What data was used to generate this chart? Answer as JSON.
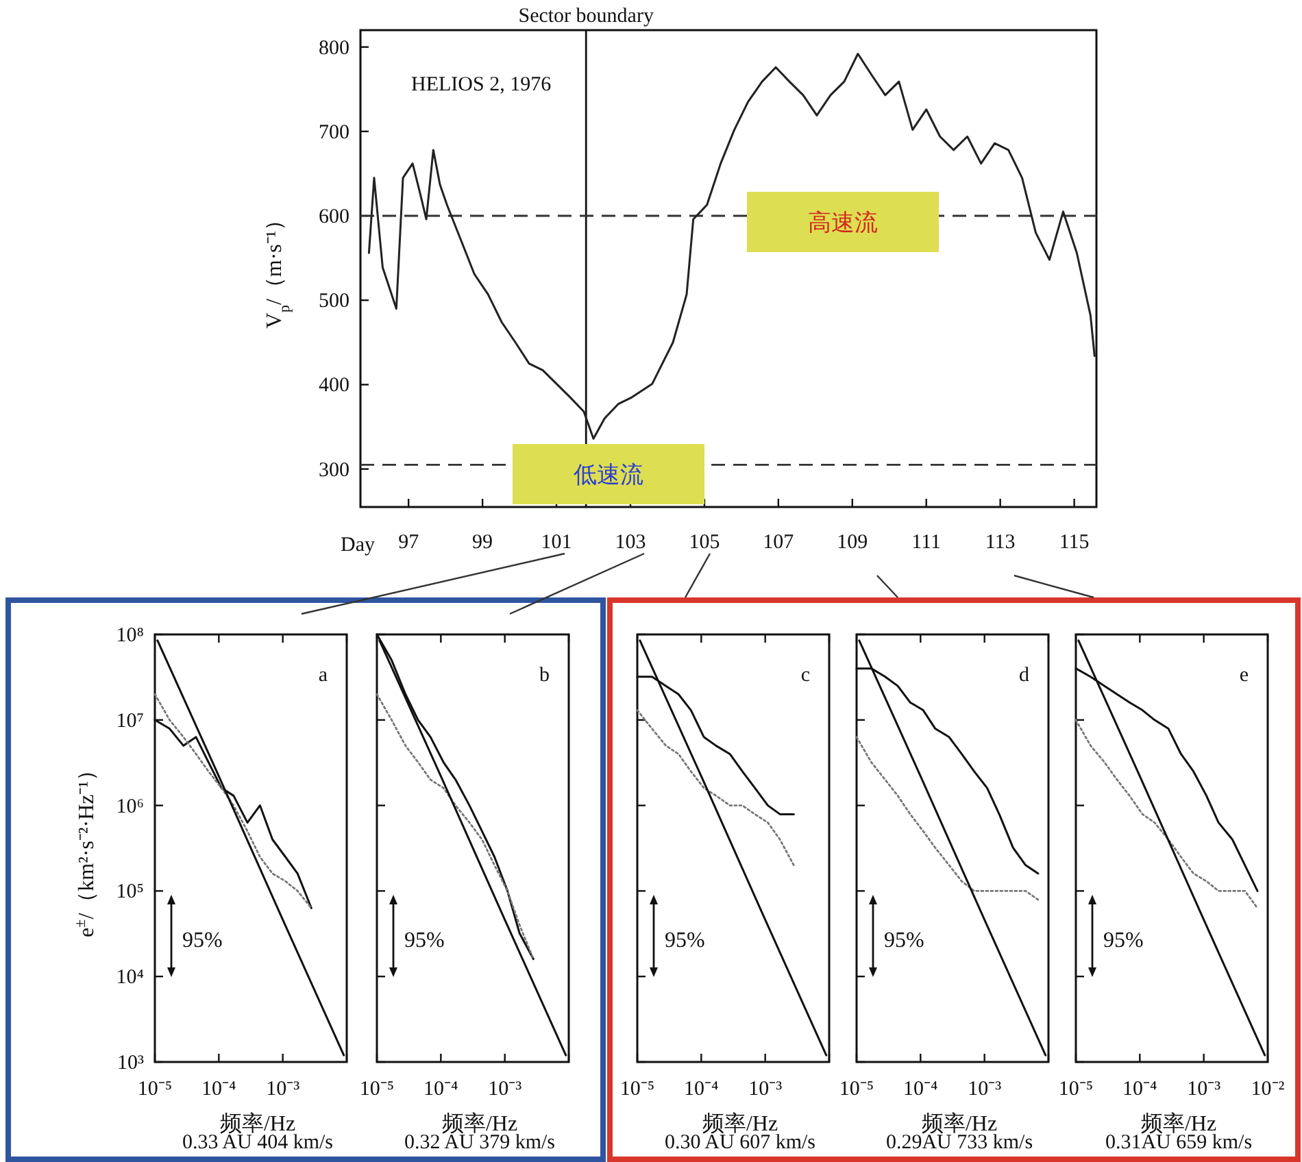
{
  "chart_data": [
    {
      "type": "line",
      "ylabel": "V$_{p}$/（m·s⁻¹）",
      "xlabel": "Day",
      "xlim": [
        95.7,
        115.6
      ],
      "ylim": [
        255,
        820
      ],
      "xticks": [
        97,
        99,
        101,
        103,
        105,
        107,
        109,
        111,
        113,
        115
      ],
      "yticks": [
        300,
        400,
        500,
        600,
        700,
        800
      ],
      "x": [
        95.93,
        96.07,
        96.3,
        96.67,
        96.85,
        97.11,
        97.3,
        97.48,
        97.67,
        97.85,
        98.04,
        98.41,
        98.78,
        99.15,
        99.52,
        99.89,
        100.26,
        100.63,
        101.0,
        101.37,
        101.74,
        102.0,
        102.3,
        102.67,
        103.04,
        103.59,
        104.15,
        104.52,
        104.7,
        105.07,
        105.44,
        105.81,
        106.18,
        106.56,
        106.93,
        107.3,
        107.67,
        108.04,
        108.41,
        108.78,
        109.15,
        109.52,
        109.89,
        110.26,
        110.63,
        111.0,
        111.37,
        111.74,
        112.11,
        112.48,
        112.85,
        113.22,
        113.59,
        113.96,
        114.33,
        114.7,
        115.07,
        115.44,
        115.55
      ],
      "series": [
        {
          "color": "#222222",
          "values": [
            556,
            645,
            539,
            490,
            645,
            662,
            629,
            596,
            678,
            637,
            613,
            572,
            531,
            507,
            474,
            450,
            425,
            417,
            401,
            385,
            368,
            336,
            360,
            377,
            385,
            401,
            450,
            507,
            596,
            613,
            662,
            702,
            735,
            759,
            776,
            759,
            743,
            719,
            743,
            759,
            792,
            767,
            743,
            759,
            702,
            726,
            694,
            678,
            694,
            662,
            686,
            678,
            645,
            580,
            548,
            605,
            556,
            482,
            434
          ]
        }
      ],
      "ref_lines": [
        {
          "axis": "x",
          "value": 101.8,
          "label": "Sector boundary",
          "color": "#111111",
          "line_style": "solid"
        },
        {
          "axis": "y",
          "value": 600,
          "color": "#333333",
          "line_style": "dashed"
        },
        {
          "axis": "y",
          "value": 305,
          "color": "#333333",
          "line_style": "dashed"
        }
      ],
      "annotations": [
        "HELIOS 2, 1976",
        "高速流",
        "低速流"
      ]
    },
    {
      "type": "line",
      "ylabel": "e$^{±}$/（km²·s⁻²·Hz⁻¹）",
      "xlabel": "频率/Hz",
      "log": "xy",
      "xlim": [
        1e-05,
        0.01
      ],
      "ylim": [
        1000.0,
        100000000.0
      ],
      "xticks": [
        {
          "value": 1e-05,
          "label": "10⁻⁵"
        },
        {
          "value": 0.0001,
          "label": "10⁻⁴"
        },
        {
          "value": 0.001,
          "label": "10⁻³"
        },
        {
          "value": 0.01,
          "label": null
        }
      ],
      "yticks": [
        {
          "value": 1000.0,
          "label": "10³"
        },
        {
          "value": 10000.0,
          "label": "10⁴"
        },
        {
          "value": 100000.0,
          "label": "10⁵"
        },
        {
          "value": 1000000.0,
          "label": "10⁶"
        },
        {
          "value": 10000000.0,
          "label": "10⁷"
        },
        {
          "value": 100000000.0,
          "label": "10⁸"
        }
      ],
      "x": [
        1e-05,
        1.7e-05,
        2.8e-05,
        4.4e-05,
        6.9e-05,
        0.00011,
        0.00017,
        0.00028,
        0.00044,
        0.00069,
        0.0011,
        0.0017,
        0.0028
      ],
      "series": [
        {
          "color": "#111111",
          "values": [
            10000000.0,
            7900000.0,
            5000000.0,
            6300000.0,
            3200000.0,
            1600000.0,
            1300000.0,
            630000.0,
            1000000.0,
            400000.0,
            250000.0,
            160000.0,
            63000.0
          ]
        },
        {
          "color": "#777777",
          "line_style": "dotted",
          "values": [
            20000000.0,
            10000000.0,
            6300000.0,
            4000000.0,
            2500000.0,
            1600000.0,
            1000000.0,
            500000.0,
            250000.0,
            160000.0,
            130000.0,
            100000.0,
            63000.0
          ]
        },
        {
          "color": "#111111",
          "x": [
            1.1e-05,
            0.0001,
            0.001,
            0.009
          ],
          "values": [
            85000000.0,
            2200000.0,
            46000.0,
            1200.0
          ]
        }
      ],
      "annotations": [
        "a",
        "95%",
        "0.33 AU    404 km/s"
      ]
    },
    {
      "type": "line",
      "xlabel": "频率/Hz",
      "log": "xy",
      "xlim": [
        1e-05,
        0.01
      ],
      "ylim": [
        1000.0,
        100000000.0
      ],
      "tick_labels": "x",
      "xticks": [
        {
          "value": 1e-05,
          "label": "10⁻⁵"
        },
        {
          "value": 0.0001,
          "label": "10⁻⁴"
        },
        {
          "value": 0.001,
          "label": "10⁻³"
        },
        {
          "value": 0.01,
          "label": null
        }
      ],
      "yticks": [
        {
          "value": 1000.0,
          "label": null
        },
        {
          "value": 10000.0,
          "label": null
        },
        {
          "value": 100000.0,
          "label": null
        },
        {
          "value": 1000000.0,
          "label": null
        },
        {
          "value": 10000000.0,
          "label": null
        },
        {
          "value": 100000000.0,
          "label": null
        }
      ],
      "x": [
        1e-05,
        1.7e-05,
        2.8e-05,
        4.4e-05,
        6.9e-05,
        0.00011,
        0.00017,
        0.00028,
        0.00044,
        0.00069,
        0.0011,
        0.0017,
        0.0028
      ],
      "series": [
        {
          "color": "#111111",
          "values": [
            100000000.0,
            50000000.0,
            20000000.0,
            10000000.0,
            6300000.0,
            3200000.0,
            2000000.0,
            1000000.0,
            500000.0,
            250000.0,
            100000.0,
            32000.0,
            16000.0
          ]
        },
        {
          "color": "#777777",
          "line_style": "dotted",
          "values": [
            20000000.0,
            10000000.0,
            5000000.0,
            3200000.0,
            2000000.0,
            1600000.0,
            1000000.0,
            630000.0,
            400000.0,
            200000.0,
            100000.0,
            40000.0,
            16000.0
          ]
        },
        {
          "color": "#111111",
          "x": [
            1.1e-05,
            0.0001,
            0.001,
            0.009
          ],
          "values": [
            85000000.0,
            2200000.0,
            46000.0,
            1200.0
          ]
        }
      ],
      "annotations": [
        "b",
        "95%",
        "0.32 AU    379 km/s"
      ]
    },
    {
      "type": "line",
      "xlabel": "频率/Hz",
      "log": "xy",
      "xlim": [
        1e-05,
        0.01
      ],
      "ylim": [
        1000.0,
        100000000.0
      ],
      "tick_labels": "x",
      "xticks": [
        {
          "value": 1e-05,
          "label": "10⁻⁵"
        },
        {
          "value": 0.0001,
          "label": "10⁻⁴"
        },
        {
          "value": 0.001,
          "label": "10⁻³"
        },
        {
          "value": 0.01,
          "label": null
        }
      ],
      "yticks": [
        {
          "value": 1000.0,
          "label": null
        },
        {
          "value": 10000.0,
          "label": null
        },
        {
          "value": 100000.0,
          "label": null
        },
        {
          "value": 1000000.0,
          "label": null
        },
        {
          "value": 10000000.0,
          "label": null
        },
        {
          "value": 100000000.0,
          "label": null
        }
      ],
      "x": [
        1e-05,
        1.7e-05,
        2.8e-05,
        4.4e-05,
        6.9e-05,
        0.00011,
        0.00017,
        0.00028,
        0.00044,
        0.00069,
        0.0011,
        0.0017,
        0.0028
      ],
      "series": [
        {
          "color": "#111111",
          "values": [
            32000000.0,
            32000000.0,
            25000000.0,
            20000000.0,
            13000000.0,
            6300000.0,
            5000000.0,
            4000000.0,
            2500000.0,
            1600000.0,
            1000000.0,
            790000.0,
            790000.0
          ]
        },
        {
          "color": "#777777",
          "line_style": "dotted",
          "values": [
            13000000.0,
            7900000.0,
            5000000.0,
            4000000.0,
            2500000.0,
            1600000.0,
            1300000.0,
            1000000.0,
            1000000.0,
            790000.0,
            630000.0,
            400000.0,
            200000.0
          ]
        },
        {
          "color": "#111111",
          "x": [
            1.1e-05,
            0.0001,
            0.001,
            0.009
          ],
          "values": [
            85000000.0,
            2200000.0,
            46000.0,
            1200.0
          ]
        }
      ],
      "annotations": [
        "c",
        "95%",
        "0.30 AU    607 km/s"
      ]
    },
    {
      "type": "line",
      "xlabel": "频率/Hz",
      "log": "xy",
      "xlim": [
        1e-05,
        0.01
      ],
      "ylim": [
        1000.0,
        100000000.0
      ],
      "tick_labels": "x",
      "xticks": [
        {
          "value": 1e-05,
          "label": "10⁻⁵"
        },
        {
          "value": 0.0001,
          "label": "10⁻⁴"
        },
        {
          "value": 0.001,
          "label": "10⁻³"
        },
        {
          "value": 0.01,
          "label": null
        }
      ],
      "yticks": [
        {
          "value": 1000.0,
          "label": null
        },
        {
          "value": 10000.0,
          "label": null
        },
        {
          "value": 100000.0,
          "label": null
        },
        {
          "value": 1000000.0,
          "label": null
        },
        {
          "value": 10000000.0,
          "label": null
        },
        {
          "value": 100000000.0,
          "label": null
        }
      ],
      "x": [
        1e-05,
        1.7e-05,
        2.8e-05,
        4.4e-05,
        6.9e-05,
        0.00011,
        0.00017,
        0.00028,
        0.00044,
        0.00069,
        0.0011,
        0.0017,
        0.0028,
        0.0044,
        0.0069
      ],
      "series": [
        {
          "color": "#111111",
          "values": [
            40000000.0,
            40000000.0,
            32000000.0,
            25000000.0,
            16000000.0,
            13000000.0,
            7900000.0,
            6300000.0,
            4000000.0,
            2500000.0,
            1600000.0,
            790000.0,
            320000.0,
            200000.0,
            160000.0
          ]
        },
        {
          "color": "#777777",
          "line_style": "dotted",
          "values": [
            6300000.0,
            3200000.0,
            2000000.0,
            1300000.0,
            790000.0,
            500000.0,
            320000.0,
            200000.0,
            130000.0,
            100000.0,
            100000.0,
            100000.0,
            100000.0,
            100000.0,
            79000.0
          ]
        },
        {
          "color": "#111111",
          "x": [
            1.1e-05,
            0.0001,
            0.001,
            0.009
          ],
          "values": [
            85000000.0,
            2200000.0,
            46000.0,
            1200.0
          ]
        }
      ],
      "annotations": [
        "d",
        "95%",
        "0.29AU    733 km/s"
      ]
    },
    {
      "type": "line",
      "xlabel": "频率/Hz",
      "log": "xy",
      "xlim": [
        1e-05,
        0.01
      ],
      "ylim": [
        1000.0,
        100000000.0
      ],
      "tick_labels": "x",
      "xticks": [
        {
          "value": 1e-05,
          "label": "10⁻⁵"
        },
        {
          "value": 0.0001,
          "label": "10⁻⁴"
        },
        {
          "value": 0.001,
          "label": "10⁻³"
        },
        {
          "value": 0.01,
          "label": "10⁻²"
        }
      ],
      "yticks": [
        {
          "value": 1000.0,
          "label": null
        },
        {
          "value": 10000.0,
          "label": null
        },
        {
          "value": 100000.0,
          "label": null
        },
        {
          "value": 1000000.0,
          "label": null
        },
        {
          "value": 10000000.0,
          "label": null
        },
        {
          "value": 100000000.0,
          "label": null
        }
      ],
      "x": [
        1e-05,
        1.7e-05,
        2.8e-05,
        4.4e-05,
        6.9e-05,
        0.00011,
        0.00017,
        0.00028,
        0.00044,
        0.00069,
        0.0011,
        0.0017,
        0.0028,
        0.0044,
        0.0069
      ],
      "series": [
        {
          "color": "#111111",
          "values": [
            40000000.0,
            32000000.0,
            25000000.0,
            20000000.0,
            16000000.0,
            13000000.0,
            10000000.0,
            7900000.0,
            4000000.0,
            2500000.0,
            1300000.0,
            630000.0,
            400000.0,
            200000.0,
            100000.0
          ]
        },
        {
          "color": "#777777",
          "line_style": "dotted",
          "values": [
            10000000.0,
            5000000.0,
            3200000.0,
            2000000.0,
            1300000.0,
            790000.0,
            630000.0,
            400000.0,
            250000.0,
            160000.0,
            130000.0,
            100000.0,
            100000.0,
            100000.0,
            63000.0
          ]
        },
        {
          "color": "#111111",
          "x": [
            1.1e-05,
            0.0001,
            0.001,
            0.009
          ],
          "values": [
            85000000.0,
            2200000.0,
            46000.0,
            1200.0
          ]
        }
      ],
      "annotations": [
        "e",
        "95%",
        "0.31AU    659 km/s"
      ]
    }
  ]
}
